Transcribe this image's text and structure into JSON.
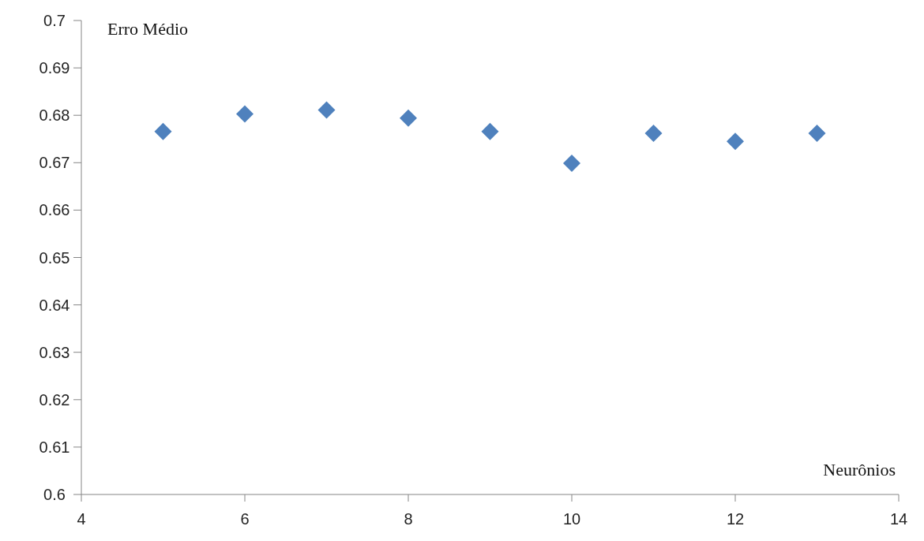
{
  "chart_data": {
    "type": "scatter",
    "xlabel": "Neurônios",
    "ylabel": "Erro Médio",
    "x": [
      5,
      6,
      7,
      8,
      9,
      10,
      11,
      12,
      13
    ],
    "series": [
      {
        "color": "#4f81bd",
        "values": [
          0.6766,
          0.6803,
          0.6811,
          0.6794,
          0.6766,
          0.6699,
          0.6762,
          0.6745,
          0.6762
        ]
      }
    ],
    "xlim": [
      4,
      14
    ],
    "xticks": [
      4,
      6,
      8,
      10,
      12,
      14
    ],
    "ylim": [
      0.6,
      0.7
    ],
    "yticks": [
      {
        "value": 0.6,
        "label": "0.6"
      },
      {
        "value": 0.61,
        "label": "0.61"
      },
      {
        "value": 0.62,
        "label": "0.62"
      },
      {
        "value": 0.63,
        "label": "0.63"
      },
      {
        "value": 0.64,
        "label": "0.64"
      },
      {
        "value": 0.65,
        "label": "0.65"
      },
      {
        "value": 0.66,
        "label": "0.66"
      },
      {
        "value": 0.67,
        "label": "0.67"
      },
      {
        "value": 0.68,
        "label": "0.68"
      },
      {
        "value": 0.69,
        "label": "0.69"
      },
      {
        "value": 0.7,
        "label": "0.7"
      }
    ],
    "marker": "diamond",
    "grid": false
  }
}
